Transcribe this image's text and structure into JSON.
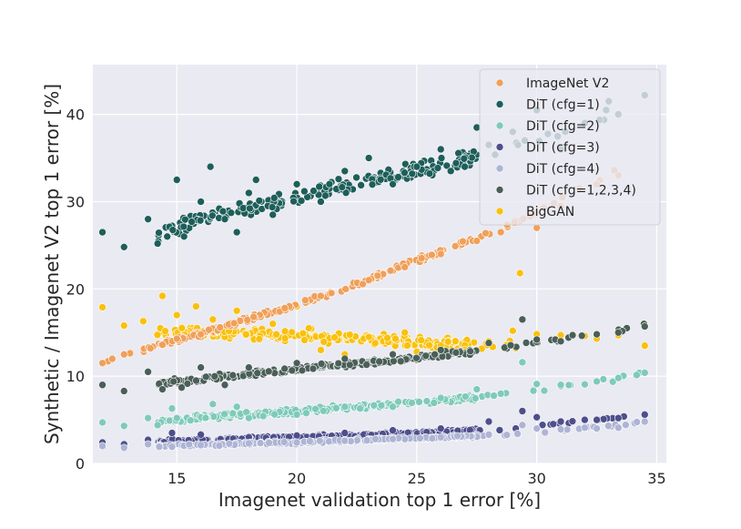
{
  "chart_data": {
    "type": "scatter",
    "title": "",
    "xlabel": "Imagenet validation top 1 error [%]",
    "ylabel": "Synthetic / Imagenet V2 top 1 error [%]",
    "xlim": [
      11.5,
      35.4
    ],
    "ylim": [
      0,
      45.7
    ],
    "xticks": [
      15,
      20,
      25,
      30,
      35
    ],
    "yticks": [
      0,
      10,
      20,
      30,
      40
    ],
    "grid": true,
    "legend_position": "top-right",
    "series": [
      {
        "name": "ImageNet V2",
        "color": "#f0a05a",
        "trend": {
          "x": [
            12.0,
            14.0,
            16.0,
            18.0,
            20.0,
            22.0,
            24.0,
            26.0,
            28.0,
            30.0,
            32.0,
            33.5
          ],
          "y": [
            11.5,
            13.5,
            14.8,
            16.5,
            18.3,
            20.0,
            22.2,
            24.3,
            26.3,
            28.8,
            31.8,
            34.0
          ]
        },
        "x": [
          11.9,
          12.8,
          13.9,
          14.4,
          15.0,
          16.0,
          16.8,
          18.2,
          19.5,
          21.0,
          23.0,
          24.5,
          26.0,
          27.5,
          28.5,
          30.0,
          31.0,
          32.5,
          33.4
        ],
        "y": [
          11.5,
          12.5,
          13.2,
          13.6,
          14.3,
          14.8,
          15.6,
          16.8,
          17.8,
          19.2,
          21.0,
          22.5,
          24.0,
          25.5,
          26.5,
          27.0,
          29.5,
          32.0,
          33.0
        ]
      },
      {
        "name": "DiT (cfg=1)",
        "color": "#1e5e5a",
        "trend": {
          "x": [
            14.0,
            16.0,
            18.0,
            20.0,
            22.0,
            24.0,
            26.0,
            28.0,
            29.5,
            31.0,
            33.0,
            34.5
          ],
          "y": [
            26.0,
            27.8,
            29.2,
            30.5,
            31.8,
            33.0,
            34.2,
            35.5,
            36.5,
            38.0,
            40.0,
            42.0
          ]
        },
        "x": [
          11.9,
          12.8,
          13.8,
          14.2,
          14.6,
          15.0,
          15.3,
          16.0,
          16.4,
          17.0,
          17.5,
          18.0,
          18.3,
          19.0,
          20.0,
          21.0,
          22.0,
          23.0,
          24.0,
          25.0,
          26.0,
          27.0,
          27.5,
          28.0,
          29.0,
          29.5,
          30.0,
          31.0,
          32.0,
          33.0,
          33.4,
          34.5
        ],
        "y": [
          26.5,
          24.8,
          28.0,
          25.2,
          26.0,
          32.5,
          26.0,
          30.0,
          34.0,
          28.0,
          26.5,
          31.0,
          32.5,
          28.5,
          32.0,
          30.0,
          33.5,
          35.0,
          32.0,
          34.0,
          36.0,
          34.0,
          38.5,
          36.5,
          38.0,
          37.0,
          40.5,
          36.0,
          39.0,
          41.5,
          40.0,
          42.2
        ]
      },
      {
        "name": "DiT (cfg=2)",
        "color": "#7fcab8",
        "trend": {
          "x": [
            14.0,
            16.0,
            18.0,
            20.0,
            22.0,
            24.0,
            26.0,
            28.0,
            29.5,
            31.0,
            33.0,
            34.5
          ],
          "y": [
            4.8,
            5.3,
            5.7,
            6.0,
            6.4,
            6.8,
            7.2,
            7.6,
            8.1,
            8.8,
            9.6,
            10.4
          ]
        },
        "x": [
          11.9,
          12.8,
          13.8,
          14.2,
          14.8,
          15.0,
          16.5,
          17.5,
          18.0,
          20.0,
          22.0,
          24.0,
          26.0,
          27.5,
          28.5,
          29.4,
          30.0,
          31.0,
          32.5,
          33.4,
          34.5
        ],
        "y": [
          4.7,
          4.3,
          5.2,
          4.4,
          6.3,
          5.2,
          6.8,
          6.5,
          5.2,
          5.6,
          6.5,
          6.5,
          7.5,
          8.5,
          8.0,
          11.6,
          9.1,
          9.0,
          9.4,
          9.8,
          10.4
        ]
      },
      {
        "name": "DiT (cfg=3)",
        "color": "#4e4e8c",
        "trend": {
          "x": [
            14.0,
            16.0,
            18.0,
            20.0,
            22.0,
            24.0,
            26.0,
            28.0,
            29.5,
            31.0,
            33.0,
            34.5
          ],
          "y": [
            2.5,
            2.7,
            2.9,
            3.0,
            3.2,
            3.4,
            3.6,
            3.9,
            4.2,
            4.6,
            5.1,
            5.6
          ]
        },
        "x": [
          11.9,
          12.8,
          13.8,
          14.8,
          16.0,
          18.0,
          20.0,
          22.0,
          24.0,
          26.0,
          28.0,
          29.4,
          30.0,
          31.0,
          32.0,
          32.5,
          33.4,
          34.5
        ],
        "y": [
          2.4,
          2.2,
          2.7,
          3.5,
          3.3,
          3.0,
          3.2,
          3.5,
          3.8,
          4.0,
          4.8,
          6.0,
          5.3,
          4.8,
          5.0,
          5.0,
          5.2,
          5.6
        ]
      },
      {
        "name": "DiT (cfg=4)",
        "color": "#aeb4d4",
        "trend": {
          "x": [
            14.0,
            16.0,
            18.0,
            20.0,
            22.0,
            24.0,
            26.0,
            28.0,
            29.5,
            31.0,
            33.0,
            34.5
          ],
          "y": [
            2.0,
            2.1,
            2.3,
            2.4,
            2.6,
            2.8,
            3.0,
            3.2,
            3.4,
            3.8,
            4.3,
            4.8
          ]
        },
        "x": [
          11.9,
          12.8,
          13.8,
          14.8,
          16.0,
          18.0,
          20.0,
          22.0,
          24.0,
          26.0,
          28.0,
          29.4,
          30.0,
          31.0,
          32.0,
          32.5,
          33.4,
          34.5
        ],
        "y": [
          2.0,
          1.8,
          2.2,
          1.9,
          2.1,
          2.3,
          2.4,
          2.6,
          2.8,
          3.0,
          3.3,
          4.4,
          4.0,
          3.9,
          4.1,
          4.0,
          4.1,
          4.8
        ]
      },
      {
        "name": "DiT (cfg=1,2,3,4)",
        "color": "#4a5f58",
        "trend": {
          "x": [
            14.0,
            16.0,
            18.0,
            20.0,
            22.0,
            24.0,
            26.0,
            28.0,
            29.5,
            31.0,
            33.0,
            34.5
          ],
          "y": [
            9.0,
            9.7,
            10.2,
            10.8,
            11.3,
            11.8,
            12.4,
            13.0,
            13.7,
            14.3,
            15.0,
            15.7
          ]
        },
        "x": [
          11.9,
          12.8,
          13.8,
          14.4,
          15.2,
          16.0,
          17.0,
          18.0,
          20.0,
          22.0,
          24.0,
          26.0,
          28.0,
          29.4,
          30.0,
          31.0,
          32.5,
          33.4,
          34.5
        ],
        "y": [
          9.0,
          8.3,
          10.5,
          8.5,
          8.7,
          11.0,
          9.0,
          11.0,
          11.5,
          12.0,
          12.5,
          13.0,
          13.8,
          16.5,
          14.2,
          14.0,
          14.8,
          15.0,
          15.7
        ]
      },
      {
        "name": "BigGAN",
        "color": "#f9c10e",
        "trend": {
          "x": [
            14.0,
            16.0,
            18.0,
            20.0,
            22.0,
            24.0,
            26.0,
            28.0,
            29.5
          ],
          "y": [
            15.0,
            15.0,
            14.9,
            14.7,
            14.4,
            14.1,
            13.8,
            13.6,
            13.6
          ]
        },
        "x": [
          11.9,
          12.8,
          13.6,
          14.4,
          15.0,
          15.8,
          16.5,
          17.5,
          18.3,
          19.0,
          20.0,
          20.5,
          21.0,
          22.0,
          23.0,
          24.0,
          24.5,
          25.0,
          26.0,
          27.0,
          28.0,
          29.0,
          29.3,
          30.0,
          31.0,
          32.0,
          32.5,
          33.4,
          34.5
        ],
        "y": [
          17.9,
          15.8,
          16.3,
          19.2,
          17.0,
          18.0,
          16.5,
          17.5,
          17.0,
          16.0,
          18.0,
          15.5,
          13.0,
          12.5,
          14.5,
          12.5,
          15.0,
          12.8,
          13.5,
          13.0,
          14.0,
          15.2,
          21.8,
          14.8,
          14.7,
          14.6,
          14.3,
          14.7,
          13.5
        ]
      }
    ]
  }
}
